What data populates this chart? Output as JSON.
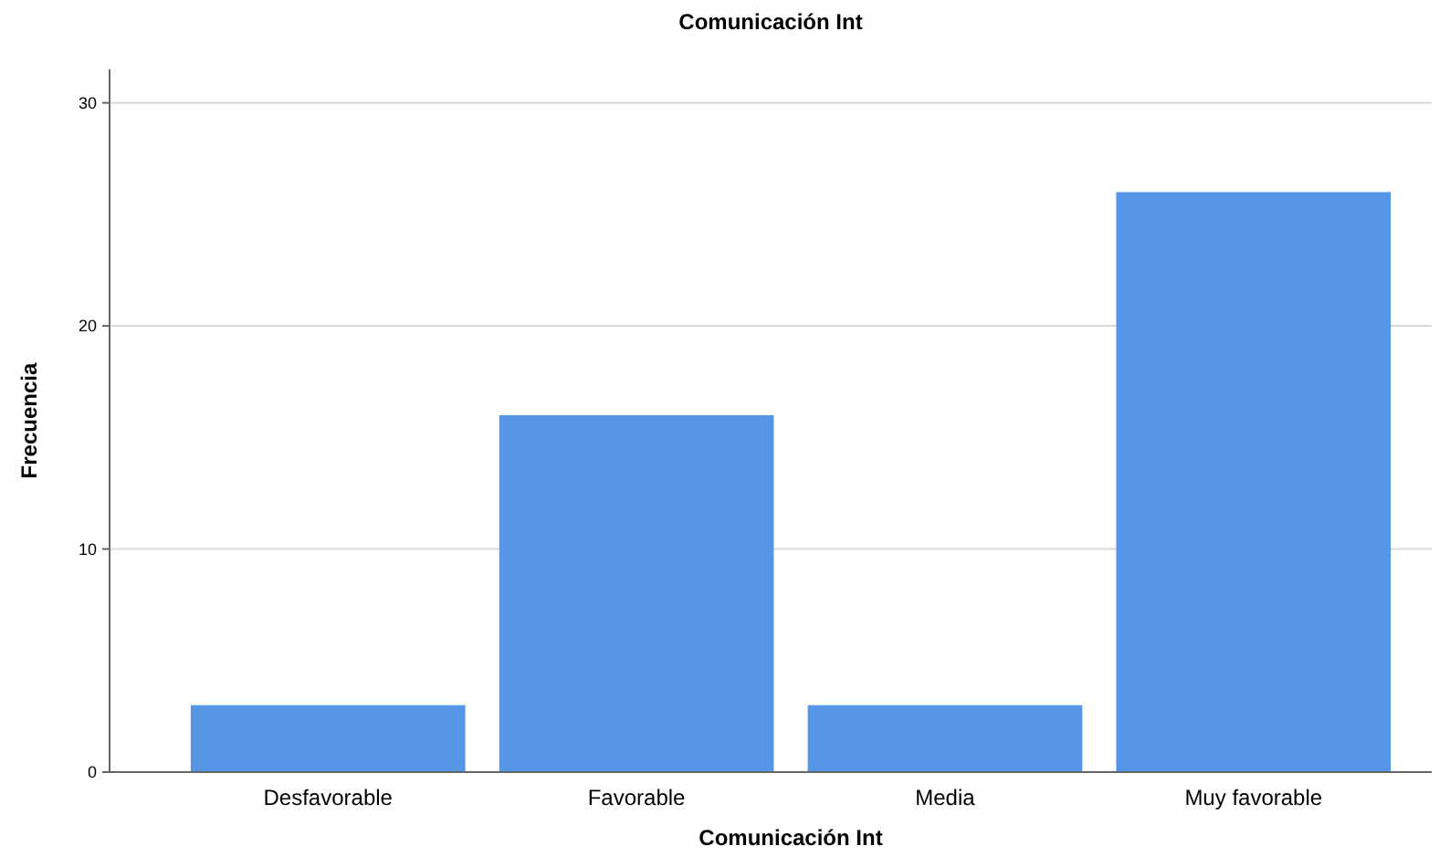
{
  "chart_data": {
    "type": "bar",
    "title": "Comunicación Int",
    "xlabel": "Comunicación Int",
    "ylabel": "Frecuencia",
    "categories": [
      "Desfavorable",
      "Favorable",
      "Media",
      "Muy favorable"
    ],
    "values": [
      3,
      16,
      3,
      26
    ],
    "color": "#5596e6",
    "ylim": [
      0,
      31.5
    ],
    "yticks": [
      0,
      10,
      20,
      30
    ],
    "grid": "y"
  }
}
